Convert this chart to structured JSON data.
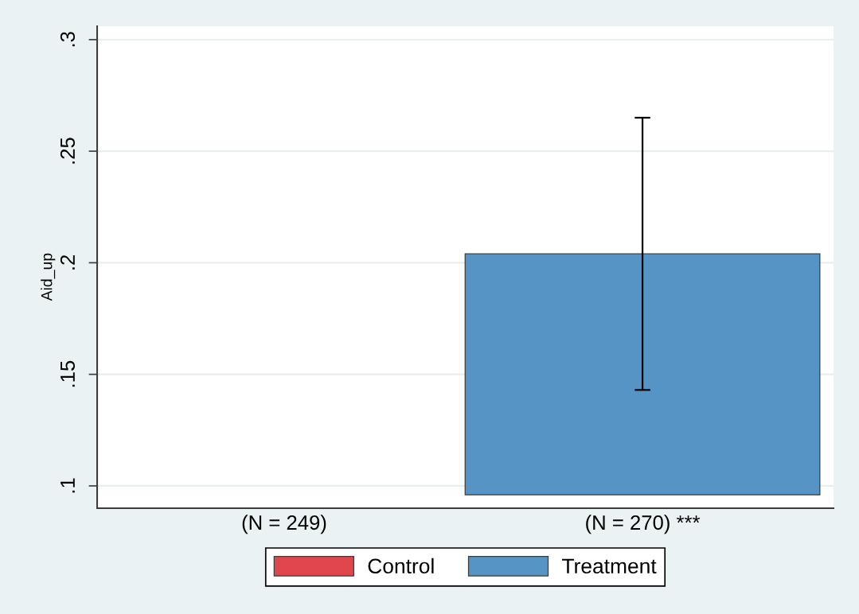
{
  "chart_data": {
    "type": "bar",
    "ylabel": "Aid_up",
    "categories": [
      "(N = 249)",
      "(N = 270) ***"
    ],
    "series": [
      {
        "name": "Control",
        "color": "#e0474c",
        "values": [
          null,
          null
        ]
      },
      {
        "name": "Treatment",
        "color": "#5594c5",
        "values": [
          null,
          0.108
        ],
        "base": [
          null,
          0.096
        ],
        "errors": [
          null,
          0.061
        ]
      }
    ],
    "ylim": [
      0.09,
      0.306
    ],
    "yticks": [
      {
        "value": 0.1,
        "label": ".1"
      },
      {
        "value": 0.15,
        "label": ".15"
      },
      {
        "value": 0.2,
        "label": ".2"
      },
      {
        "value": 0.25,
        "label": ".25"
      },
      {
        "value": 0.3,
        "label": ".3"
      }
    ],
    "grid": "y",
    "legend": "bottom"
  }
}
